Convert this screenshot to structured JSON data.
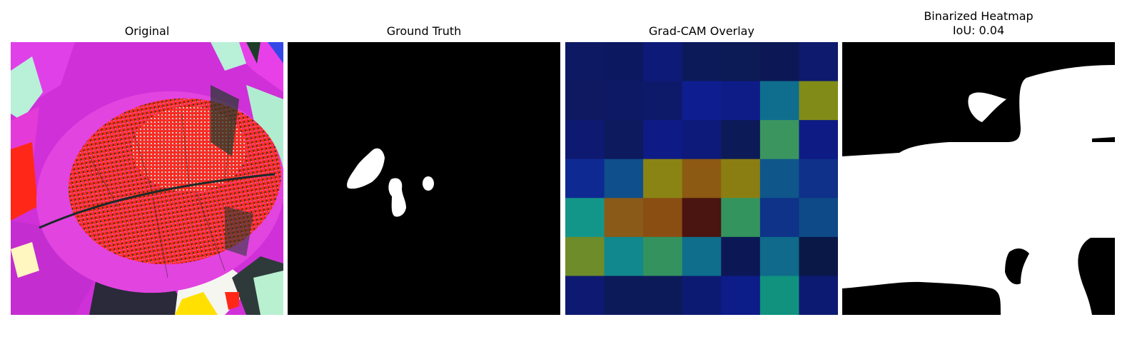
{
  "panels": [
    {
      "title": "Original"
    },
    {
      "title": "Ground Truth"
    },
    {
      "title": "Grad-CAM Overlay"
    },
    {
      "title": "Binarized Heatmap\nIoU: 0.04"
    }
  ],
  "gradcam_grid": [
    [
      "#0d1a63",
      "#0c1860",
      "#0e1a78",
      "#0c1a5a",
      "#0c1a55",
      "#0b1855",
      "#0d1a6e"
    ],
    [
      "#0e1962",
      "#0d1964",
      "#0d1a6a",
      "#0e1e90",
      "#0e1c88",
      "#0f6e8e",
      "#808c17"
    ],
    [
      "#0e1a72",
      "#0d1a5e",
      "#0e1b86",
      "#0d1a7a",
      "#0c1a58",
      "#3a965e",
      "#0e1b84"
    ],
    [
      "#0f2992",
      "#0f4f8c",
      "#8a8414",
      "#8c5a12",
      "#8a7e12",
      "#0f568a",
      "#0f318a"
    ],
    [
      "#13968a",
      "#8a5a18",
      "#8a4e12",
      "#4a1410",
      "#33945e",
      "#0e3388",
      "#0e4a88"
    ],
    [
      "#6e8c2a",
      "#11888e",
      "#33925e",
      "#0f6e8c",
      "#0c1856",
      "#0f6a8c",
      "#0a1848"
    ],
    [
      "#0e1a72",
      "#0d1a5a",
      "#0d1a5a",
      "#0d1a72",
      "#0c1c88",
      "#10927e",
      "#0d1a72"
    ]
  ]
}
